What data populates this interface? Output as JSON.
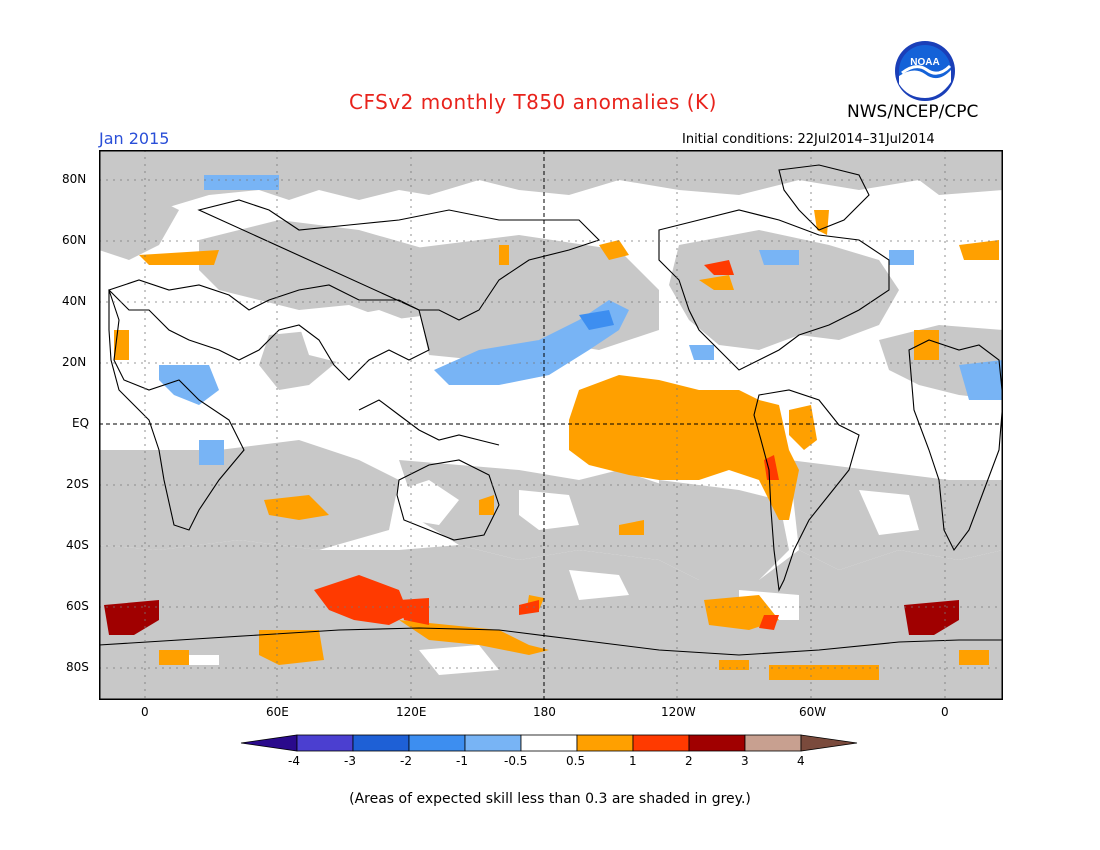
{
  "title": "CFSv2 monthly T850 anomalies (K)",
  "subtitle_month": "Jan 2015",
  "agency": "NWS/NCEP/CPC",
  "initial_conditions": "Initial conditions: 22Jul2014–31Jul2014",
  "logo_label": "NOAA",
  "footnote": "(Areas of expected skill less than 0.3 are shaded in grey.)",
  "colors": {
    "title": "#e8231c",
    "month": "#2a4fd8",
    "skill_grey": "#c8c8c8",
    "land_outline": "#000000"
  },
  "map": {
    "lat_labels": [
      "80N",
      "60N",
      "40N",
      "20N",
      "EQ",
      "20S",
      "40S",
      "60S",
      "80S"
    ],
    "lon_labels": [
      "0",
      "60E",
      "120E",
      "180",
      "120W",
      "60W",
      "0"
    ]
  },
  "legend": {
    "tick_labels": [
      "-4",
      "-3",
      "-2",
      "-1",
      "-0.5",
      "0.5",
      "1",
      "2",
      "3",
      "4"
    ],
    "colors": [
      "#2a0a8c",
      "#4b3fd0",
      "#1e60d6",
      "#3d8ef0",
      "#78b4f5",
      "#ffffff",
      "#ffa000",
      "#ff3a00",
      "#a00000",
      "#c8a090",
      "#7a4a3c"
    ]
  }
}
